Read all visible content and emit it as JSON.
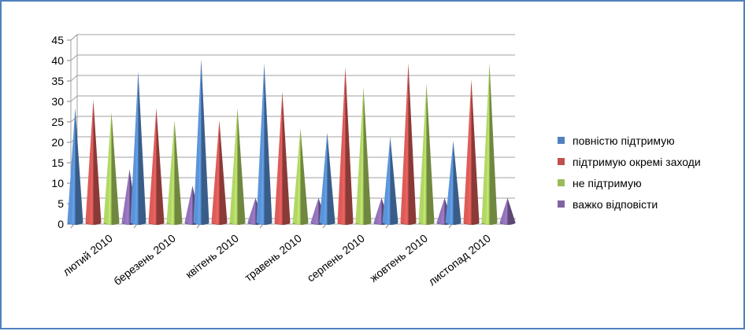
{
  "chart_data": {
    "type": "bar",
    "style": "3d-cone",
    "categories": [
      "лютий 2010",
      "березень 2010",
      "квітень 2010",
      "травень 2010",
      "серпень 2010",
      "жовтень 2010",
      "листопад 2010"
    ],
    "series": [
      {
        "name": "повністю підтримую",
        "color": "#4f81bd",
        "values": [
          28,
          37,
          40,
          39,
          22,
          21,
          20
        ]
      },
      {
        "name": "підтримую окремі заходи",
        "color": "#c0504d",
        "values": [
          30,
          28,
          25,
          32,
          38,
          39,
          35
        ]
      },
      {
        "name": "не підтримую",
        "color": "#9bbb59",
        "values": [
          27,
          25,
          28,
          23,
          33,
          34,
          39
        ]
      },
      {
        "name": "важко відповісти",
        "color": "#8064a2",
        "values": [
          13,
          9,
          6,
          6,
          6,
          6,
          6
        ]
      }
    ],
    "ylim": [
      0,
      45
    ],
    "yticks": [
      "0",
      "5",
      "10",
      "15",
      "20",
      "25",
      "30",
      "35",
      "40",
      "45"
    ],
    "grid": true,
    "legend_position": "right"
  }
}
